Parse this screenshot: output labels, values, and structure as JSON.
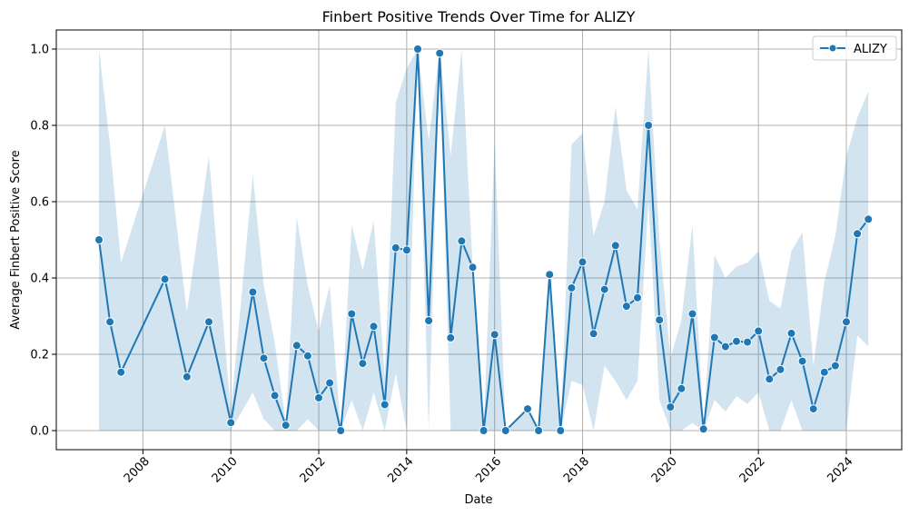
{
  "chart_data": {
    "type": "line",
    "title": "Finbert Positive Trends Over Time for ALIZY",
    "xlabel": "Date",
    "ylabel": "Average Finbert Positive Score",
    "xlim": [
      2006.03,
      2025.26
    ],
    "ylim": [
      -0.05,
      1.05
    ],
    "xticks": [
      2008,
      2010,
      2012,
      2014,
      2016,
      2018,
      2020,
      2022,
      2024
    ],
    "yticks": [
      0.0,
      0.2,
      0.4,
      0.6,
      0.8,
      1.0
    ],
    "xtick_labels": [
      "2008",
      "2010",
      "2012",
      "2014",
      "2016",
      "2018",
      "2020",
      "2022",
      "2024"
    ],
    "ytick_labels": [
      "0.0",
      "0.2",
      "0.4",
      "0.6",
      "0.8",
      "1.0"
    ],
    "grid": true,
    "legend_position": "top-right",
    "series": [
      {
        "name": "ALIZY",
        "color": "#1f77b4",
        "band_color": "#1f77b4",
        "x": [
          2007.0,
          2007.25,
          2007.5,
          2008.5,
          2009.0,
          2009.5,
          2010.0,
          2010.5,
          2010.75,
          2011.0,
          2011.25,
          2011.5,
          2011.75,
          2012.0,
          2012.25,
          2012.5,
          2012.75,
          2013.0,
          2013.25,
          2013.5,
          2013.75,
          2014.0,
          2014.25,
          2014.5,
          2014.75,
          2015.0,
          2015.25,
          2015.5,
          2015.75,
          2016.0,
          2016.25,
          2016.75,
          2017.0,
          2017.25,
          2017.5,
          2017.75,
          2018.0,
          2018.25,
          2018.5,
          2018.75,
          2019.0,
          2019.25,
          2019.5,
          2019.75,
          2020.0,
          2020.25,
          2020.5,
          2020.75,
          2021.0,
          2021.25,
          2021.5,
          2021.75,
          2022.0,
          2022.25,
          2022.5,
          2022.75,
          2023.0,
          2023.25,
          2023.5,
          2023.75,
          2024.0,
          2024.25,
          2024.5
        ],
        "values": [
          0.5,
          0.285,
          0.153,
          0.397,
          0.141,
          0.285,
          0.021,
          0.363,
          0.19,
          0.092,
          0.014,
          0.223,
          0.196,
          0.086,
          0.125,
          0.0,
          0.306,
          0.176,
          0.273,
          0.068,
          0.479,
          0.473,
          1.0,
          0.288,
          0.989,
          0.243,
          0.497,
          0.428,
          0.0,
          0.252,
          0.0,
          0.057,
          0.0,
          0.409,
          0.0,
          0.374,
          0.442,
          0.254,
          0.37,
          0.485,
          0.326,
          0.348,
          0.8,
          0.29,
          0.062,
          0.11,
          0.306,
          0.004,
          0.244,
          0.22,
          0.234,
          0.232,
          0.261,
          0.135,
          0.16,
          0.255,
          0.182,
          0.057,
          0.153,
          0.17,
          0.285,
          0.516,
          0.554
        ],
        "lower": [
          0.0,
          0.0,
          0.0,
          0.0,
          0.0,
          0.0,
          0.0,
          0.1,
          0.03,
          0.0,
          0.0,
          0.0,
          0.03,
          0.0,
          0.0,
          0.0,
          0.08,
          0.0,
          0.1,
          0.0,
          0.15,
          0.0,
          1.0,
          0.0,
          0.97,
          0.0,
          0.0,
          0.0,
          0.0,
          0.0,
          0.0,
          0.0,
          0.0,
          0.0,
          0.0,
          0.13,
          0.12,
          0.0,
          0.17,
          0.13,
          0.08,
          0.13,
          0.6,
          0.08,
          0.0,
          0.0,
          0.02,
          0.0,
          0.08,
          0.05,
          0.09,
          0.07,
          0.1,
          0.0,
          0.0,
          0.08,
          0.0,
          0.0,
          0.0,
          0.0,
          0.0,
          0.25,
          0.22
        ],
        "upper": [
          1.0,
          0.75,
          0.44,
          0.8,
          0.31,
          0.72,
          0.05,
          0.67,
          0.38,
          0.23,
          0.02,
          0.56,
          0.38,
          0.26,
          0.38,
          0.0,
          0.54,
          0.42,
          0.55,
          0.14,
          0.86,
          0.95,
          1.0,
          0.76,
          1.0,
          0.72,
          1.0,
          0.43,
          0.0,
          0.76,
          0.0,
          0.06,
          0.0,
          0.41,
          0.0,
          0.75,
          0.78,
          0.51,
          0.6,
          0.85,
          0.63,
          0.58,
          1.0,
          0.5,
          0.19,
          0.29,
          0.54,
          0.01,
          0.46,
          0.4,
          0.43,
          0.44,
          0.47,
          0.34,
          0.32,
          0.47,
          0.52,
          0.17,
          0.39,
          0.51,
          0.72,
          0.82,
          0.89
        ]
      }
    ]
  }
}
